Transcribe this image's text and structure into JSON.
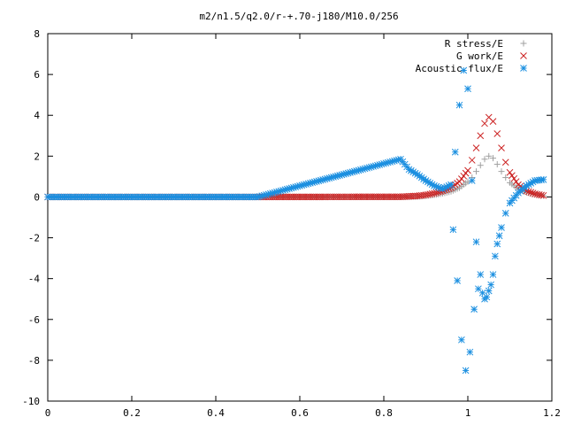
{
  "chart_data": {
    "type": "scatter",
    "title": "m2/n1.5/q2.0/r-+.70-j180/M10.0/256",
    "xlabel": "",
    "ylabel": "",
    "xlim": [
      0,
      1.2
    ],
    "ylim": [
      -10,
      8
    ],
    "xticks": [
      0,
      0.2,
      0.4,
      0.6,
      0.8,
      1,
      1.2
    ],
    "xtick_labels": [
      "0",
      "0.2",
      "0.4",
      "0.6",
      "0.8",
      "1",
      "1.2"
    ],
    "yticks": [
      -10,
      -8,
      -6,
      -4,
      -2,
      0,
      2,
      4,
      6,
      8
    ],
    "ytick_labels": [
      "-10",
      "-8",
      "-6",
      "-4",
      "-2",
      "0",
      "2",
      "4",
      "6",
      "8"
    ],
    "grid": false,
    "legend_position": "top-right",
    "series": [
      {
        "name": "R stress/E",
        "marker": "plus",
        "color": "#a0a0a0",
        "points": [
          [
            0.0,
            0
          ],
          [
            0.5,
            0
          ],
          [
            0.84,
            0
          ],
          [
            0.86,
            0.01
          ],
          [
            0.88,
            0.02
          ],
          [
            0.9,
            0.05
          ],
          [
            0.92,
            0.1
          ],
          [
            0.94,
            0.17
          ],
          [
            0.96,
            0.27
          ],
          [
            0.98,
            0.45
          ],
          [
            1.0,
            0.75
          ],
          [
            1.01,
            0.95
          ],
          [
            1.02,
            1.25
          ],
          [
            1.03,
            1.55
          ],
          [
            1.04,
            1.85
          ],
          [
            1.05,
            2.0
          ],
          [
            1.06,
            1.9
          ],
          [
            1.07,
            1.6
          ],
          [
            1.08,
            1.25
          ],
          [
            1.09,
            0.95
          ],
          [
            1.1,
            0.7
          ],
          [
            1.12,
            0.4
          ],
          [
            1.14,
            0.22
          ],
          [
            1.16,
            0.12
          ],
          [
            1.18,
            0.06
          ]
        ]
      },
      {
        "name": "G work/E",
        "marker": "cross",
        "color": "#cc2222",
        "points": [
          [
            0.0,
            0
          ],
          [
            0.5,
            0
          ],
          [
            0.84,
            0.01
          ],
          [
            0.86,
            0.03
          ],
          [
            0.88,
            0.05
          ],
          [
            0.9,
            0.1
          ],
          [
            0.92,
            0.18
          ],
          [
            0.94,
            0.3
          ],
          [
            0.96,
            0.45
          ],
          [
            0.98,
            0.75
          ],
          [
            1.0,
            1.3
          ],
          [
            1.01,
            1.8
          ],
          [
            1.02,
            2.4
          ],
          [
            1.03,
            3.0
          ],
          [
            1.04,
            3.6
          ],
          [
            1.05,
            3.9
          ],
          [
            1.06,
            3.7
          ],
          [
            1.07,
            3.1
          ],
          [
            1.08,
            2.4
          ],
          [
            1.09,
            1.7
          ],
          [
            1.1,
            1.2
          ],
          [
            1.12,
            0.6
          ],
          [
            1.14,
            0.3
          ],
          [
            1.16,
            0.15
          ],
          [
            1.18,
            0.07
          ]
        ]
      },
      {
        "name": "Acoustic flux/E",
        "marker": "star",
        "color": "#1a8fe0",
        "points": [
          [
            0.0,
            0
          ],
          [
            0.5,
            0
          ],
          [
            0.84,
            1.85
          ],
          [
            0.86,
            1.35
          ],
          [
            0.88,
            1.1
          ],
          [
            0.9,
            0.8
          ],
          [
            0.92,
            0.55
          ],
          [
            0.94,
            0.4
          ],
          [
            0.96,
            0.6
          ],
          [
            0.965,
            -1.6
          ],
          [
            0.97,
            2.2
          ],
          [
            0.975,
            -4.1
          ],
          [
            0.98,
            4.5
          ],
          [
            0.985,
            -7.0
          ],
          [
            0.99,
            6.2
          ],
          [
            0.995,
            -8.5
          ],
          [
            1.0,
            5.3
          ],
          [
            1.005,
            -7.6
          ],
          [
            1.01,
            0.8
          ],
          [
            1.015,
            -5.5
          ],
          [
            1.02,
            -2.2
          ],
          [
            1.025,
            -4.5
          ],
          [
            1.03,
            -3.8
          ],
          [
            1.035,
            -4.7
          ],
          [
            1.04,
            -5.0
          ],
          [
            1.045,
            -4.9
          ],
          [
            1.05,
            -4.6
          ],
          [
            1.055,
            -4.3
          ],
          [
            1.06,
            -3.8
          ],
          [
            1.065,
            -2.9
          ],
          [
            1.07,
            -2.3
          ],
          [
            1.075,
            -1.9
          ],
          [
            1.08,
            -1.5
          ],
          [
            1.09,
            -0.8
          ],
          [
            1.1,
            -0.3
          ],
          [
            1.12,
            0.2
          ],
          [
            1.14,
            0.55
          ],
          [
            1.16,
            0.8
          ],
          [
            1.18,
            0.85
          ]
        ]
      }
    ]
  }
}
